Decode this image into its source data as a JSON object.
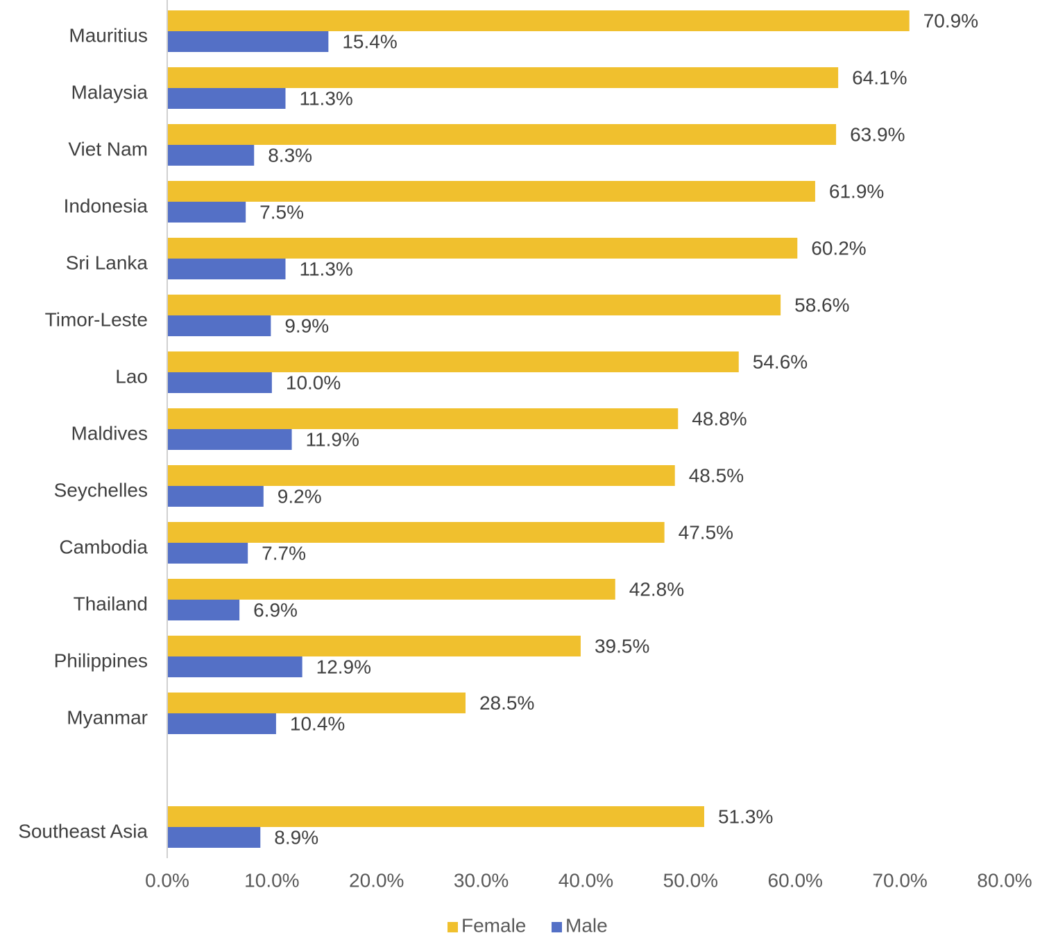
{
  "chart_data": {
    "type": "bar",
    "orientation": "horizontal",
    "categories": [
      "Mauritius",
      "Malaysia",
      "Viet Nam",
      "Indonesia",
      "Sri Lanka",
      "Timor-Leste",
      "Lao",
      "Maldives",
      "Seychelles",
      "Cambodia",
      "Thailand",
      "Philippines",
      "Myanmar",
      "",
      "Southeast Asia"
    ],
    "series": [
      {
        "name": "Female",
        "color": "#F0C02E",
        "values": [
          70.9,
          64.1,
          63.9,
          61.9,
          60.2,
          58.6,
          54.6,
          48.8,
          48.5,
          47.5,
          42.8,
          39.5,
          28.5,
          null,
          51.3
        ],
        "labels": [
          "70.9%",
          "64.1%",
          "63.9%",
          "61.9%",
          "60.2%",
          "58.6%",
          "54.6%",
          "48.8%",
          "48.5%",
          "47.5%",
          "42.8%",
          "39.5%",
          "28.5%",
          "",
          "51.3%"
        ]
      },
      {
        "name": "Male",
        "color": "#5470C6",
        "values": [
          15.4,
          11.3,
          8.3,
          7.5,
          11.3,
          9.9,
          10.0,
          11.9,
          9.2,
          7.7,
          6.9,
          12.9,
          10.4,
          null,
          8.9
        ],
        "labels": [
          "15.4%",
          "11.3%",
          "8.3%",
          "7.5%",
          "11.3%",
          "9.9%",
          "10.0%",
          "11.9%",
          "9.2%",
          "7.7%",
          "6.9%",
          "12.9%",
          "10.4%",
          "",
          "8.9%"
        ]
      }
    ],
    "xlim": [
      0,
      80
    ],
    "xticks": [
      "0.0%",
      "10.0%",
      "20.0%",
      "30.0%",
      "40.0%",
      "50.0%",
      "60.0%",
      "70.0%",
      "80.0%"
    ],
    "xlabel": "",
    "ylabel": "",
    "grid": false,
    "legend_position": "bottom"
  }
}
